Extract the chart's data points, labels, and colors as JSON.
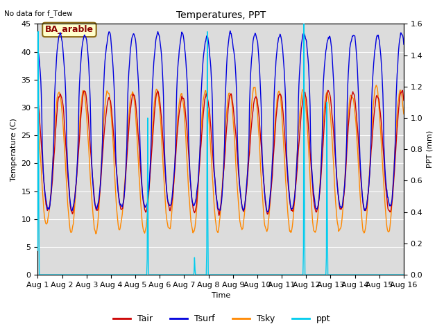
{
  "title": "Temperatures, PPT",
  "note": "No data for f_Tdew",
  "annotation": "BA_arable",
  "xlabel": "Time",
  "ylabel_left": "Temperature (C)",
  "ylabel_right": "PPT (mm)",
  "ylim_left": [
    0,
    45
  ],
  "ylim_right": [
    0.0,
    1.6
  ],
  "xlim": [
    0,
    15
  ],
  "xtick_labels": [
    "Aug 1",
    "Aug 2",
    "Aug 3",
    "Aug 4",
    "Aug 5",
    "Aug 6",
    "Aug 7",
    "Aug 8",
    "Aug 9",
    "Aug 10",
    "Aug 11",
    "Aug 12",
    "Aug 13",
    "Aug 14",
    "Aug 15",
    "Aug 16"
  ],
  "bg_color": "#dcdcdc",
  "fig_bg": "#ffffff",
  "colors": {
    "Tair": "#cc0000",
    "Tsurf": "#0000dd",
    "Tsky": "#ff8800",
    "ppt": "#00ccee"
  },
  "linewidth": 1.0,
  "title_fontsize": 10,
  "label_fontsize": 8,
  "tick_fontsize": 8,
  "legend_fontsize": 9,
  "yticks_left": [
    0,
    5,
    10,
    15,
    20,
    25,
    30,
    35,
    40,
    45
  ],
  "yticks_right": [
    0.0,
    0.2,
    0.4,
    0.6,
    0.8,
    1.0,
    1.2,
    1.4,
    1.6
  ],
  "ppt_spikes": [
    {
      "day": 0.04,
      "height": 1.55
    },
    {
      "day": 4.52,
      "height": 1.0
    },
    {
      "day": 6.42,
      "height": 0.11
    },
    {
      "day": 6.95,
      "height": 1.55
    },
    {
      "day": 10.9,
      "height": 1.65
    },
    {
      "day": 11.85,
      "height": 1.1
    }
  ]
}
